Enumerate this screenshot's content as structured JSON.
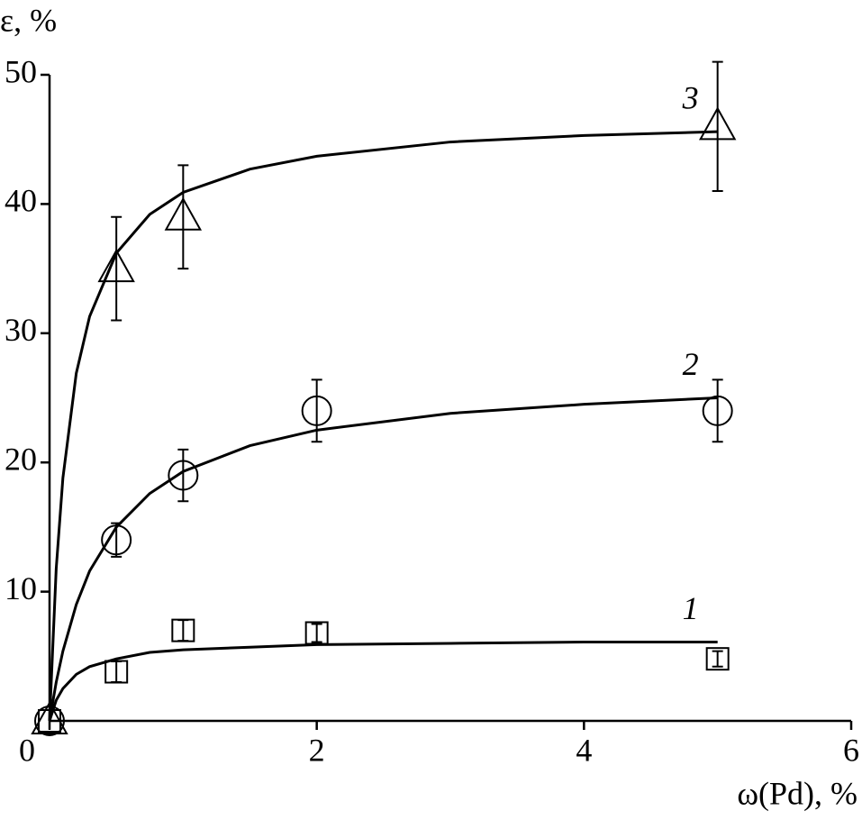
{
  "chart_data": {
    "type": "scatter",
    "xlabel": "ω(Pd), %",
    "ylabel": "ε, %",
    "xlim": [
      0,
      6
    ],
    "ylim": [
      0,
      50
    ],
    "xticks": [
      0,
      2,
      4,
      6
    ],
    "yticks": [
      10,
      20,
      30,
      40,
      50
    ],
    "color": "#000000",
    "series": [
      {
        "name": "1",
        "marker": "square",
        "x": [
          0,
          0.5,
          1,
          2,
          5
        ],
        "values": [
          0,
          3.8,
          7,
          6.8,
          4.8
        ],
        "errors": [
          0,
          0.8,
          0.8,
          0.7,
          0.6
        ],
        "fit_x": [
          0,
          0.05,
          0.1,
          0.2,
          0.3,
          0.5,
          0.75,
          1,
          1.5,
          2,
          3,
          4,
          5
        ],
        "fit_values": [
          0,
          1.6,
          2.5,
          3.6,
          4.2,
          4.8,
          5.3,
          5.5,
          5.7,
          5.9,
          6.0,
          6.1,
          6.1
        ]
      },
      {
        "name": "2",
        "marker": "circle",
        "x": [
          0,
          0.5,
          1,
          2,
          5
        ],
        "values": [
          0,
          14,
          19,
          24,
          24
        ],
        "errors": [
          0,
          1.3,
          2,
          2.4,
          2.4
        ],
        "fit_x": [
          0,
          0.05,
          0.1,
          0.2,
          0.3,
          0.5,
          0.75,
          1,
          1.5,
          2,
          3,
          4,
          5
        ],
        "fit_values": [
          0,
          3.0,
          5.4,
          9.0,
          11.6,
          15.0,
          17.6,
          19.3,
          21.3,
          22.5,
          23.8,
          24.5,
          25.0
        ]
      },
      {
        "name": "3",
        "marker": "triangle",
        "x": [
          0,
          0.5,
          1,
          5
        ],
        "values": [
          0,
          35,
          39,
          46
        ],
        "errors": [
          0,
          4,
          4,
          5
        ],
        "fit_x": [
          0,
          0.05,
          0.1,
          0.2,
          0.3,
          0.5,
          0.75,
          1,
          1.5,
          2,
          3,
          4,
          5
        ],
        "fit_values": [
          0,
          11.8,
          18.8,
          26.9,
          31.3,
          36.2,
          39.2,
          40.9,
          42.7,
          43.7,
          44.8,
          45.3,
          45.6
        ]
      }
    ]
  }
}
